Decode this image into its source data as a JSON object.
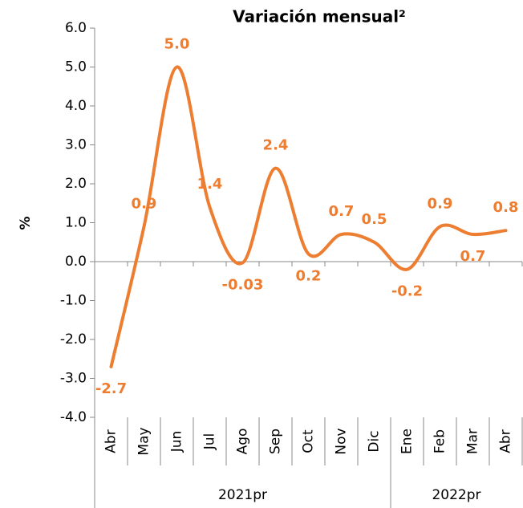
{
  "chart_data": {
    "type": "line",
    "title": "Variación mensual²",
    "y_label": "%",
    "categories": [
      "Abr",
      "May",
      "Jun",
      "Jul",
      "Ago",
      "Sep",
      "Oct",
      "Nov",
      "Dic",
      "Ene",
      "Feb",
      "Mar",
      "Abr"
    ],
    "groups": [
      {
        "name": "2021pr",
        "count": 9
      },
      {
        "name": "2022pr",
        "count": 4
      }
    ],
    "series": [
      {
        "name": "Variación mensual",
        "color": "#ED7D31",
        "values": [
          -2.7,
          0.9,
          5.0,
          1.4,
          -0.03,
          2.4,
          0.2,
          0.7,
          0.5,
          -0.2,
          0.9,
          0.7,
          0.8
        ],
        "value_labels": [
          "-2.7",
          "0.9",
          "5.0",
          "1.4",
          "-0.03",
          "2.4",
          "0.2",
          "0.7",
          "0.5",
          "-0.2",
          "0.9",
          "0.7",
          "0.8"
        ]
      }
    ],
    "ylim": [
      -4,
      6
    ],
    "yticks": [
      {
        "value": -4,
        "label": "-4.0"
      },
      {
        "value": -3,
        "label": "-3.0"
      },
      {
        "value": -2,
        "label": "-2.0"
      },
      {
        "value": -1,
        "label": "-1.0"
      },
      {
        "value": 0,
        "label": "0.0"
      },
      {
        "value": 1,
        "label": "1.0"
      },
      {
        "value": 2,
        "label": "2.0"
      },
      {
        "value": 3,
        "label": "3.0"
      },
      {
        "value": 4,
        "label": "4.0"
      },
      {
        "value": 5,
        "label": "5.0"
      },
      {
        "value": 6,
        "label": "6.0"
      }
    ],
    "smooth": true
  }
}
